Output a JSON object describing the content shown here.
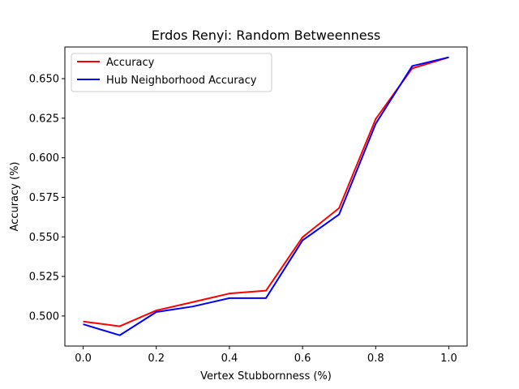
{
  "chart_data": {
    "type": "line",
    "title": "Erdos Renyi: Random Betweenness",
    "xlabel": "Vertex Stubbornness (%)",
    "ylabel": "Accuracy (%)",
    "xlim": [
      -0.05,
      1.05
    ],
    "ylim": [
      0.481,
      0.67
    ],
    "xticks": [
      0.0,
      0.2,
      0.4,
      0.6,
      0.8,
      1.0
    ],
    "xtick_labels": [
      "0.0",
      "0.2",
      "0.4",
      "0.6",
      "0.8",
      "1.0"
    ],
    "yticks": [
      0.5,
      0.525,
      0.55,
      0.575,
      0.6,
      0.625,
      0.65
    ],
    "ytick_labels": [
      "0.500",
      "0.525",
      "0.550",
      "0.575",
      "0.600",
      "0.625",
      "0.650"
    ],
    "grid": false,
    "legend_position": "upper-left",
    "x": [
      0.0,
      0.1,
      0.2,
      0.3,
      0.4,
      0.5,
      0.6,
      0.7,
      0.8,
      0.9,
      1.0
    ],
    "series": [
      {
        "name": "Accuracy",
        "color": "#ff0000",
        "values": [
          0.4965,
          0.4935,
          0.5035,
          0.5088,
          0.5142,
          0.516,
          0.5498,
          0.5682,
          0.6245,
          0.6565,
          0.6635
        ]
      },
      {
        "name": "Hub Neighborhood Accuracy",
        "color": "#0000ff",
        "values": [
          0.4948,
          0.4878,
          0.5025,
          0.506,
          0.5113,
          0.5113,
          0.5478,
          0.5642,
          0.6215,
          0.658,
          0.6635
        ]
      }
    ]
  }
}
